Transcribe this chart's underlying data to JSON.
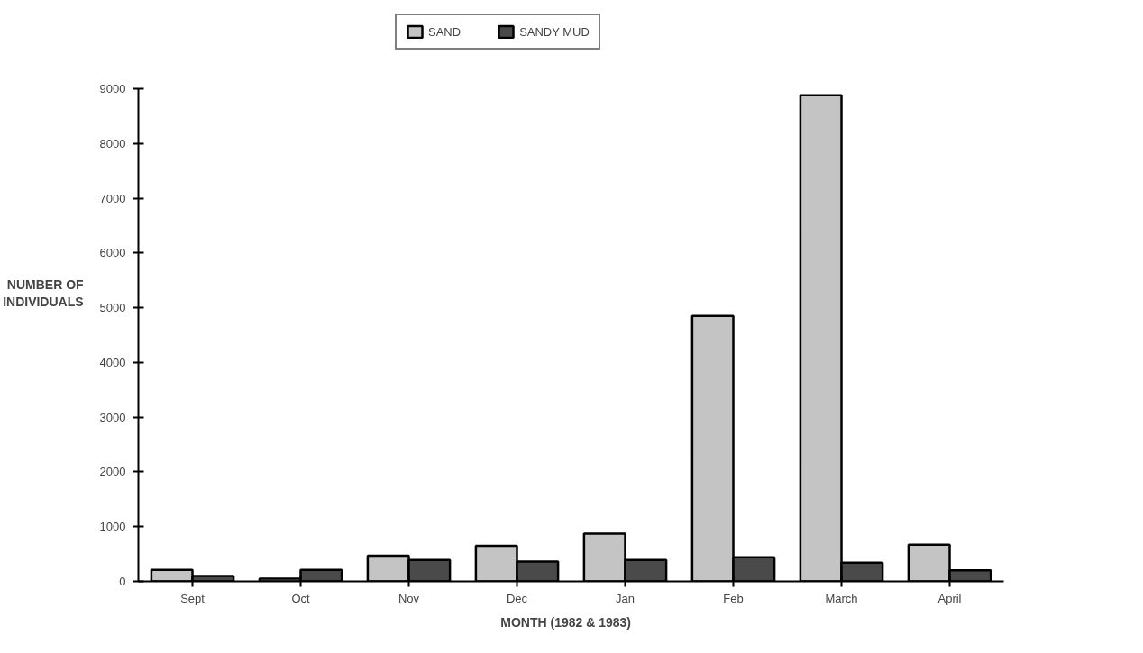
{
  "chart_data": {
    "type": "bar",
    "xlabel": "MONTH  (1982  &  1983)",
    "ylabel": "NUMBER OF INDIVIDUALS",
    "categories": [
      "Sept",
      "Oct",
      "Nov",
      "Dec",
      "Jan",
      "Feb",
      "March",
      "April"
    ],
    "series": [
      {
        "name": "SAND",
        "color": "#c4c4c4",
        "values": [
          210,
          50,
          470,
          650,
          870,
          4850,
          8880,
          670
        ]
      },
      {
        "name": "SANDY MUD",
        "color": "#4a4a4a",
        "values": [
          100,
          210,
          390,
          360,
          390,
          440,
          340,
          200
        ]
      }
    ],
    "ylim": [
      0,
      9000
    ],
    "yticks": [
      0,
      1000,
      2000,
      3000,
      4000,
      5000,
      6000,
      7000,
      8000,
      9000
    ],
    "grid": false,
    "legend": "top"
  }
}
